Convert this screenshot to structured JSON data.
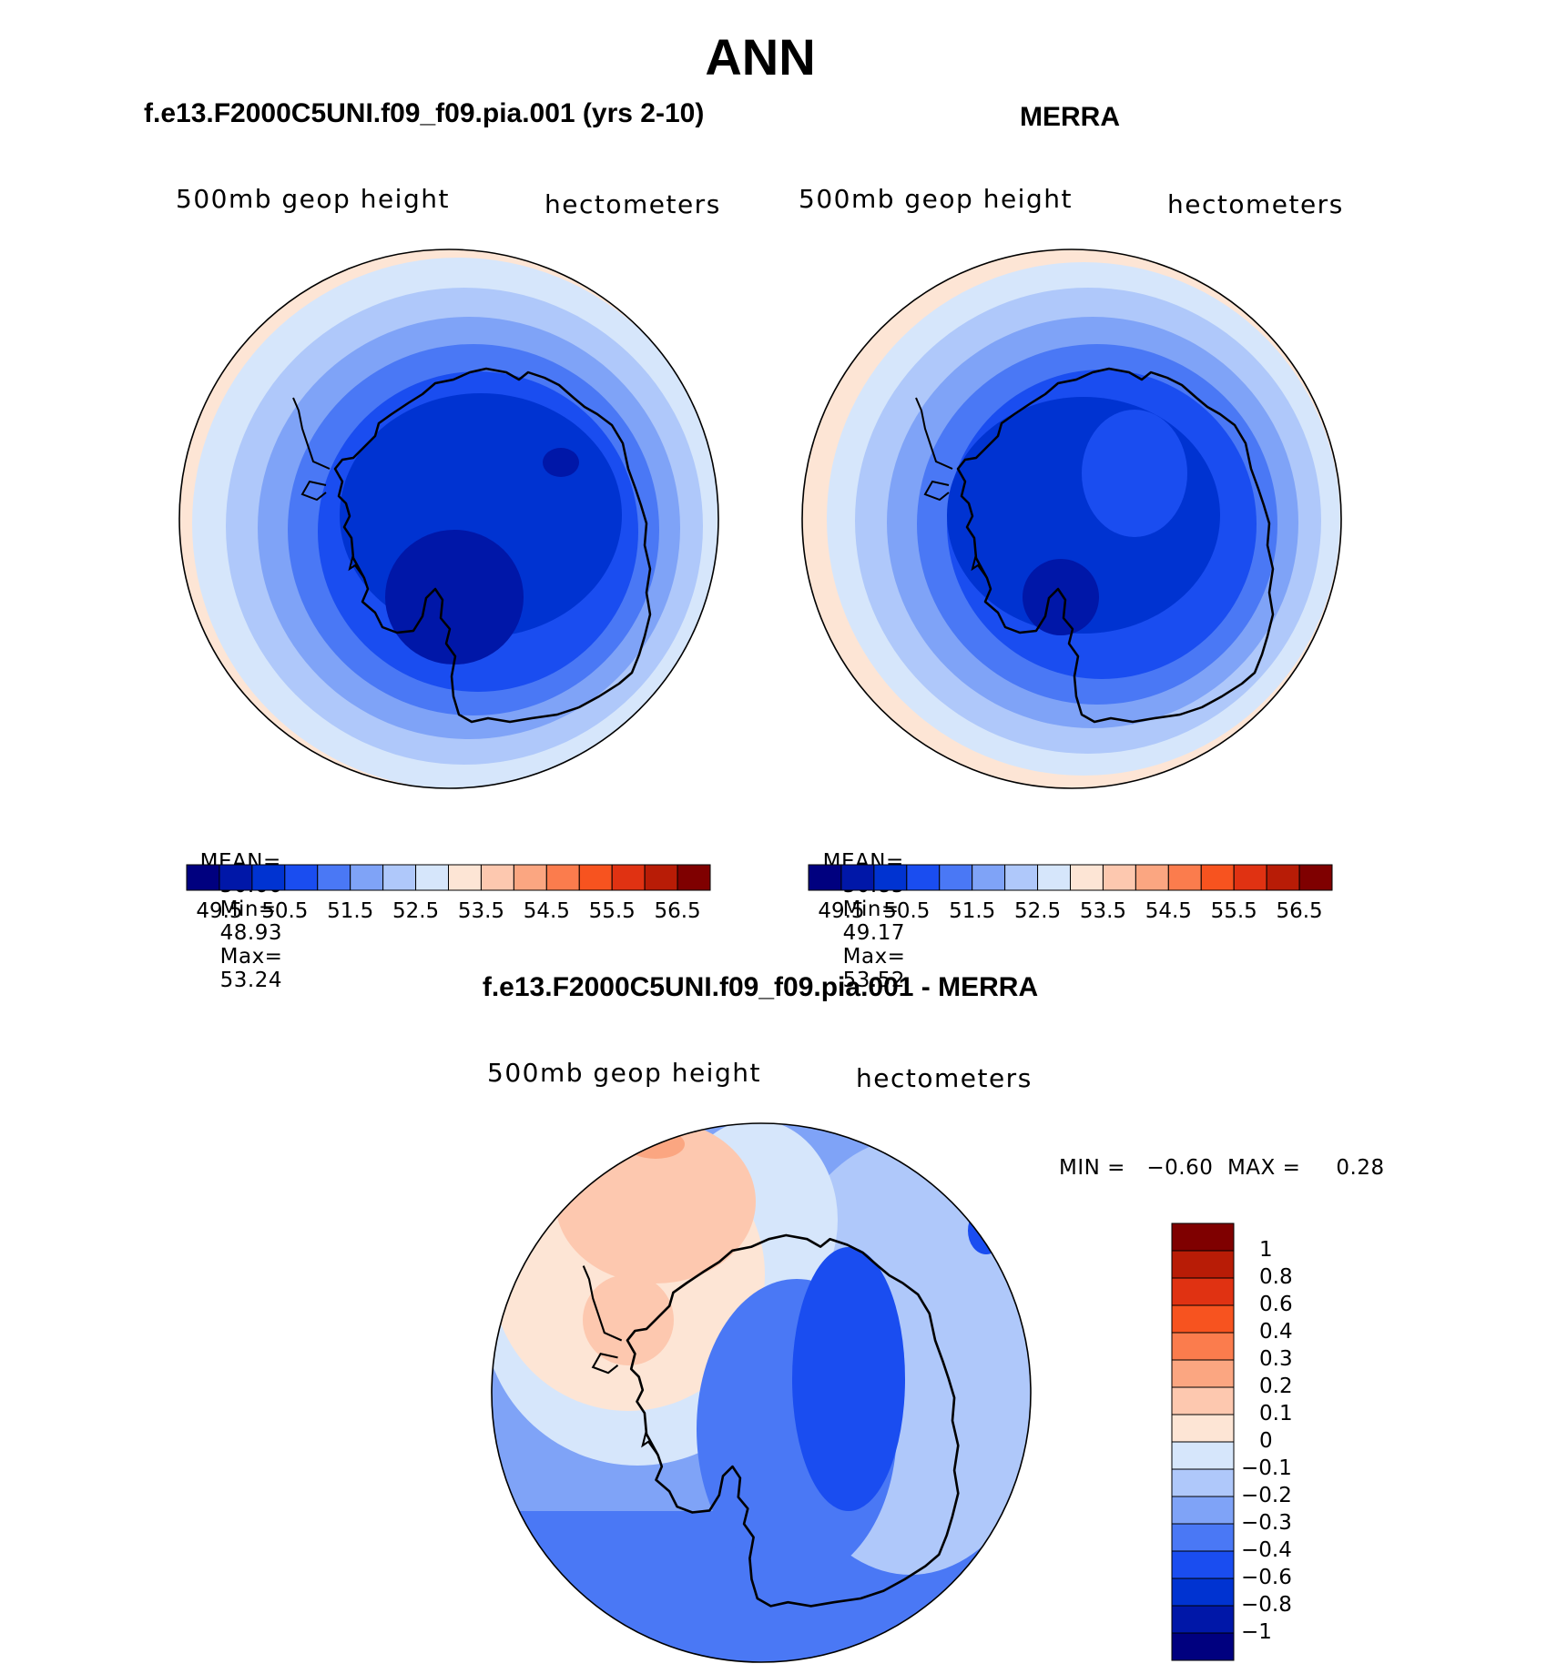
{
  "figure": {
    "main_title": "ANN",
    "panels": [
      {
        "id": "model",
        "title": "f.e13.F2000C5UNI.f09_f09.pia.001 (yrs 2-10)",
        "variable_label": "500mb geop height",
        "units_label": "hectometers",
        "stats": {
          "mean_label": "MEAN=",
          "mean": "50.66",
          "min_label": "Min=",
          "min": "48.93",
          "max_label": "Max=",
          "max": "53.24"
        }
      },
      {
        "id": "obs",
        "title": "MERRA",
        "variable_label": "500mb geop height",
        "units_label": "hectometers",
        "stats": {
          "mean_label": "MEAN=",
          "mean": "50.85",
          "min_label": "Min=",
          "min": "49.17",
          "max_label": "Max=",
          "max": "53.52"
        }
      },
      {
        "id": "diff",
        "title": "f.e13.F2000C5UNI.f09_f09.pia.001 - MERRA",
        "variable_label": "500mb geop height",
        "units_label": "hectometers",
        "range_text": "MIN =   −0.60  MAX =     0.28"
      }
    ],
    "colorbar_main": {
      "colors": [
        "#00007f",
        "#0017a8",
        "#0033d1",
        "#1a4df0",
        "#4a78f5",
        "#7fa3f7",
        "#afc8fa",
        "#d6e6fb",
        "#fde5d5",
        "#fdc8af",
        "#fba681",
        "#fb7c4d",
        "#f7531f",
        "#e03212",
        "#b81c06",
        "#7f0000"
      ],
      "tick_labels": [
        "49.5",
        "50.5",
        "51.5",
        "52.5",
        "53.5",
        "54.5",
        "55.5",
        "56.5"
      ]
    },
    "colorbar_diff": {
      "colors": [
        "#7f0000",
        "#b81c06",
        "#e03212",
        "#f7531f",
        "#fb7c4d",
        "#fba681",
        "#fdc8af",
        "#fde5d5",
        "#d6e6fb",
        "#afc8fa",
        "#7fa3f7",
        "#4a78f5",
        "#1a4df0",
        "#0033d1",
        "#0017a8",
        "#00007f"
      ],
      "tick_labels": [
        "1",
        "0.8",
        "0.6",
        "0.4",
        "0.3",
        "0.2",
        "0.1",
        "0",
        "−0.1",
        "−0.2",
        "−0.3",
        "−0.4",
        "−0.6",
        "−0.8",
        "−1"
      ]
    },
    "map_region": "Antarctica, south polar stereographic"
  }
}
